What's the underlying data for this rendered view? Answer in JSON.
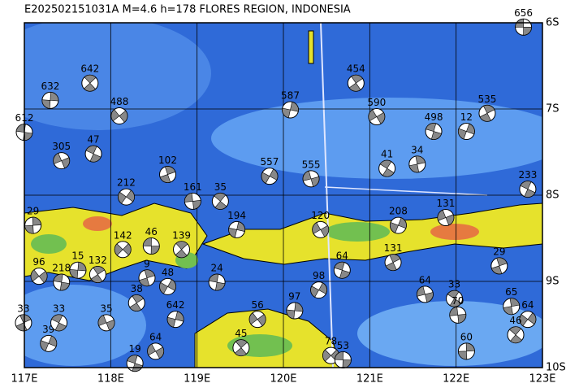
{
  "map": {
    "title": "E202502151031A M=4.6 h=178 FLORES REGION, INDONESIA",
    "lonlim": [
      117,
      123
    ],
    "latlim": [
      -10,
      -6
    ],
    "lon_ticks": [
      {
        "value": 117,
        "label": "117E"
      },
      {
        "value": 118,
        "label": "118E"
      },
      {
        "value": 119,
        "label": "119E"
      },
      {
        "value": 120,
        "label": "120E"
      },
      {
        "value": 121,
        "label": "121E"
      },
      {
        "value": 122,
        "label": "122E"
      },
      {
        "value": 123,
        "label": "123E"
      }
    ],
    "lat_ticks": [
      {
        "value": -6,
        "label": "6S"
      },
      {
        "value": -7,
        "label": "7S"
      },
      {
        "value": -8,
        "label": "8S"
      },
      {
        "value": -9,
        "label": "9S"
      },
      {
        "value": -10,
        "label": "10S"
      }
    ],
    "events": [
      {
        "lon": 122.78,
        "lat": -6.05,
        "label": "656"
      },
      {
        "lon": 117.76,
        "lat": -6.7,
        "label": "642"
      },
      {
        "lon": 117.3,
        "lat": -6.9,
        "label": "632"
      },
      {
        "lon": 118.1,
        "lat": -7.08,
        "label": "488"
      },
      {
        "lon": 117.0,
        "lat": -7.27,
        "label": "612"
      },
      {
        "lon": 120.84,
        "lat": -6.7,
        "label": "454"
      },
      {
        "lon": 120.08,
        "lat": -7.01,
        "label": "587"
      },
      {
        "lon": 121.08,
        "lat": -7.09,
        "label": "590"
      },
      {
        "lon": 121.74,
        "lat": -7.26,
        "label": "498"
      },
      {
        "lon": 122.36,
        "lat": -7.05,
        "label": "535"
      },
      {
        "lon": 122.12,
        "lat": -7.26,
        "label": "12"
      },
      {
        "lon": 117.43,
        "lat": -7.6,
        "label": "305"
      },
      {
        "lon": 117.8,
        "lat": -7.52,
        "label": "47"
      },
      {
        "lon": 118.66,
        "lat": -7.76,
        "label": "102"
      },
      {
        "lon": 119.84,
        "lat": -7.78,
        "label": "557"
      },
      {
        "lon": 120.32,
        "lat": -7.81,
        "label": "555"
      },
      {
        "lon": 121.2,
        "lat": -7.69,
        "label": "41"
      },
      {
        "lon": 121.55,
        "lat": -7.64,
        "label": "34"
      },
      {
        "lon": 118.18,
        "lat": -8.02,
        "label": "212"
      },
      {
        "lon": 118.95,
        "lat": -8.07,
        "label": "161"
      },
      {
        "lon": 119.27,
        "lat": -8.07,
        "label": "35"
      },
      {
        "lon": 117.1,
        "lat": -8.35,
        "label": "29"
      },
      {
        "lon": 118.14,
        "lat": -8.63,
        "label": "142"
      },
      {
        "lon": 118.47,
        "lat": -8.59,
        "label": "46"
      },
      {
        "lon": 118.82,
        "lat": -8.63,
        "label": "139"
      },
      {
        "lon": 117.62,
        "lat": -8.87,
        "label": "15"
      },
      {
        "lon": 117.17,
        "lat": -8.94,
        "label": "96"
      },
      {
        "lon": 117.43,
        "lat": -9.01,
        "label": "218"
      },
      {
        "lon": 117.85,
        "lat": -8.92,
        "label": "132"
      },
      {
        "lon": 119.46,
        "lat": -8.4,
        "label": "194"
      },
      {
        "lon": 120.43,
        "lat": -8.4,
        "label": "120"
      },
      {
        "lon": 120.68,
        "lat": -8.87,
        "label": "64"
      },
      {
        "lon": 121.27,
        "lat": -8.78,
        "label": "131"
      },
      {
        "lon": 121.33,
        "lat": -8.35,
        "label": "208"
      },
      {
        "lon": 121.88,
        "lat": -8.26,
        "label": "131"
      },
      {
        "lon": 122.83,
        "lat": -7.93,
        "label": "233"
      },
      {
        "lon": 122.5,
        "lat": -8.82,
        "label": "29"
      },
      {
        "lon": 120.41,
        "lat": -9.1,
        "label": "98"
      },
      {
        "lon": 121.64,
        "lat": -9.15,
        "label": "64"
      },
      {
        "lon": 121.98,
        "lat": -9.2,
        "label": "33"
      },
      {
        "lon": 122.64,
        "lat": -9.29,
        "label": "65"
      },
      {
        "lon": 122.83,
        "lat": -9.44,
        "label": "64"
      },
      {
        "lon": 122.02,
        "lat": -9.39,
        "label": "70"
      },
      {
        "lon": 122.69,
        "lat": -9.62,
        "label": "46"
      },
      {
        "lon": 122.12,
        "lat": -9.81,
        "label": "60"
      },
      {
        "lon": 120.55,
        "lat": -9.86,
        "label": "78"
      },
      {
        "lon": 120.69,
        "lat": -9.91,
        "label": "53"
      },
      {
        "lon": 119.51,
        "lat": -9.77,
        "label": "45"
      },
      {
        "lon": 120.13,
        "lat": -9.34,
        "label": "97"
      },
      {
        "lon": 119.7,
        "lat": -9.44,
        "label": "56"
      },
      {
        "lon": 119.23,
        "lat": -9.01,
        "label": "24"
      },
      {
        "lon": 118.3,
        "lat": -9.25,
        "label": "38"
      },
      {
        "lon": 118.75,
        "lat": -9.44,
        "label": "642"
      },
      {
        "lon": 118.52,
        "lat": -9.81,
        "label": "64"
      },
      {
        "lon": 118.28,
        "lat": -9.95,
        "label": "19"
      },
      {
        "lon": 116.99,
        "lat": -9.48,
        "label": "33"
      },
      {
        "lon": 117.28,
        "lat": -9.72,
        "label": "39"
      },
      {
        "lon": 117.95,
        "lat": -9.48,
        "label": "35"
      },
      {
        "lon": 117.4,
        "lat": -9.48,
        "label": "33"
      },
      {
        "lon": 118.42,
        "lat": -8.96,
        "label": "9"
      },
      {
        "lon": 118.66,
        "lat": -9.06,
        "label": "48"
      }
    ]
  }
}
